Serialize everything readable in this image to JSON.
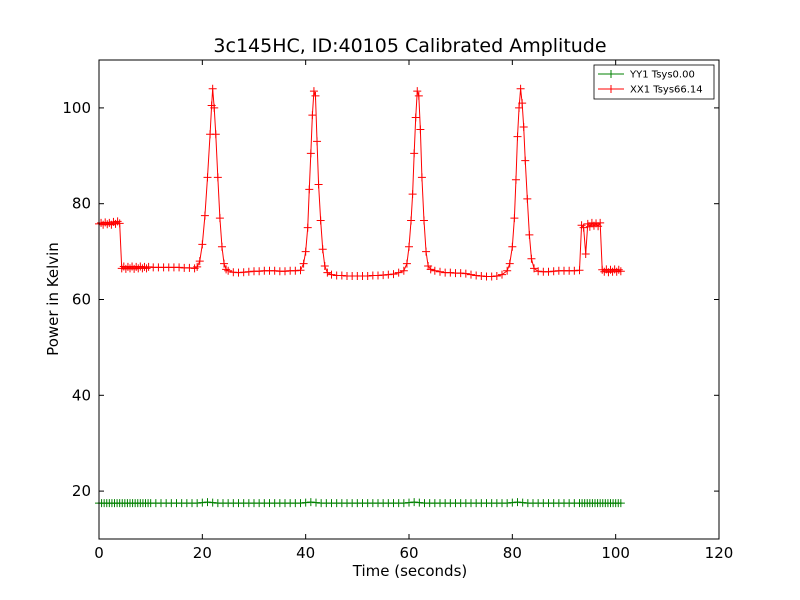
{
  "chart_data": {
    "type": "line",
    "title": "3c145HC, ID:40105 Calibrated Amplitude",
    "xlabel": "Time (seconds)",
    "ylabel": "Power in Kelvin",
    "xlim": [
      0,
      120
    ],
    "ylim": [
      10,
      110
    ],
    "x_ticks": [
      0,
      20,
      40,
      60,
      80,
      100,
      120
    ],
    "y_ticks": [
      20,
      40,
      60,
      80,
      100
    ],
    "grid": false,
    "legend_position": "top-right",
    "marker": "+",
    "series": [
      {
        "name": "YY1 Tsys0.00",
        "color": "#008000",
        "points": [
          [
            0,
            17.5
          ],
          [
            0.5,
            17.5
          ],
          [
            1,
            17.5
          ],
          [
            1.5,
            17.5
          ],
          [
            2,
            17.5
          ],
          [
            2.5,
            17.5
          ],
          [
            3,
            17.5
          ],
          [
            3.5,
            17.5
          ],
          [
            4,
            17.5
          ],
          [
            4.5,
            17.5
          ],
          [
            5,
            17.5
          ],
          [
            5.5,
            17.5
          ],
          [
            6,
            17.5
          ],
          [
            6.5,
            17.5
          ],
          [
            7,
            17.5
          ],
          [
            7.5,
            17.5
          ],
          [
            8,
            17.5
          ],
          [
            8.5,
            17.5
          ],
          [
            9,
            17.5
          ],
          [
            9.5,
            17.5
          ],
          [
            10,
            17.5
          ],
          [
            11,
            17.5
          ],
          [
            12,
            17.5
          ],
          [
            13,
            17.5
          ],
          [
            14,
            17.5
          ],
          [
            15,
            17.5
          ],
          [
            16,
            17.5
          ],
          [
            17,
            17.5
          ],
          [
            18,
            17.5
          ],
          [
            19,
            17.5
          ],
          [
            20,
            17.6
          ],
          [
            21,
            17.7
          ],
          [
            22,
            17.6
          ],
          [
            23,
            17.5
          ],
          [
            24,
            17.5
          ],
          [
            25,
            17.5
          ],
          [
            26,
            17.5
          ],
          [
            27,
            17.5
          ],
          [
            28,
            17.5
          ],
          [
            29,
            17.5
          ],
          [
            30,
            17.5
          ],
          [
            31,
            17.5
          ],
          [
            32,
            17.5
          ],
          [
            33,
            17.5
          ],
          [
            34,
            17.5
          ],
          [
            35,
            17.5
          ],
          [
            36,
            17.5
          ],
          [
            37,
            17.5
          ],
          [
            38,
            17.5
          ],
          [
            39,
            17.5
          ],
          [
            40,
            17.6
          ],
          [
            41,
            17.7
          ],
          [
            42,
            17.6
          ],
          [
            43,
            17.5
          ],
          [
            44,
            17.5
          ],
          [
            45,
            17.5
          ],
          [
            46,
            17.5
          ],
          [
            47,
            17.5
          ],
          [
            48,
            17.5
          ],
          [
            49,
            17.5
          ],
          [
            50,
            17.5
          ],
          [
            51,
            17.5
          ],
          [
            52,
            17.5
          ],
          [
            53,
            17.5
          ],
          [
            54,
            17.5
          ],
          [
            55,
            17.5
          ],
          [
            56,
            17.5
          ],
          [
            57,
            17.5
          ],
          [
            58,
            17.5
          ],
          [
            59,
            17.5
          ],
          [
            60,
            17.6
          ],
          [
            61,
            17.7
          ],
          [
            62,
            17.6
          ],
          [
            63,
            17.5
          ],
          [
            64,
            17.5
          ],
          [
            65,
            17.5
          ],
          [
            66,
            17.5
          ],
          [
            67,
            17.5
          ],
          [
            68,
            17.5
          ],
          [
            69,
            17.5
          ],
          [
            70,
            17.5
          ],
          [
            71,
            17.5
          ],
          [
            72,
            17.5
          ],
          [
            73,
            17.5
          ],
          [
            74,
            17.5
          ],
          [
            75,
            17.5
          ],
          [
            76,
            17.5
          ],
          [
            77,
            17.5
          ],
          [
            78,
            17.5
          ],
          [
            79,
            17.5
          ],
          [
            80,
            17.6
          ],
          [
            81,
            17.7
          ],
          [
            82,
            17.6
          ],
          [
            83,
            17.5
          ],
          [
            84,
            17.5
          ],
          [
            85,
            17.5
          ],
          [
            86,
            17.5
          ],
          [
            87,
            17.5
          ],
          [
            88,
            17.5
          ],
          [
            89,
            17.5
          ],
          [
            90,
            17.5
          ],
          [
            91,
            17.5
          ],
          [
            92,
            17.5
          ],
          [
            93,
            17.5
          ],
          [
            93.5,
            17.5
          ],
          [
            94,
            17.5
          ],
          [
            94.5,
            17.5
          ],
          [
            95,
            17.5
          ],
          [
            95.5,
            17.5
          ],
          [
            96,
            17.5
          ],
          [
            96.5,
            17.5
          ],
          [
            97,
            17.5
          ],
          [
            97.5,
            17.5
          ],
          [
            98,
            17.5
          ],
          [
            98.5,
            17.5
          ],
          [
            99,
            17.5
          ],
          [
            99.5,
            17.5
          ],
          [
            100,
            17.5
          ],
          [
            100.5,
            17.5
          ],
          [
            101,
            17.5
          ]
        ]
      },
      {
        "name": "XX1 Tsys66.14",
        "color": "#ff0000",
        "points": [
          [
            0,
            75.8
          ],
          [
            0.4,
            76.0
          ],
          [
            0.8,
            75.6
          ],
          [
            1.2,
            76.1
          ],
          [
            1.6,
            75.7
          ],
          [
            2.0,
            76.0
          ],
          [
            2.4,
            75.6
          ],
          [
            2.8,
            76.2
          ],
          [
            3.2,
            75.8
          ],
          [
            3.6,
            76.3
          ],
          [
            4.0,
            75.9
          ],
          [
            4.4,
            66.5
          ],
          [
            4.8,
            66.9
          ],
          [
            5.2,
            66.4
          ],
          [
            5.6,
            66.8
          ],
          [
            6.0,
            66.5
          ],
          [
            6.4,
            66.9
          ],
          [
            6.8,
            66.4
          ],
          [
            7.2,
            66.8
          ],
          [
            7.6,
            66.5
          ],
          [
            8.0,
            66.9
          ],
          [
            8.4,
            66.5
          ],
          [
            8.8,
            66.8
          ],
          [
            9.2,
            66.5
          ],
          [
            9.6,
            66.8
          ],
          [
            10.5,
            66.7
          ],
          [
            11.5,
            66.7
          ],
          [
            12.5,
            66.7
          ],
          [
            13.5,
            66.7
          ],
          [
            14.5,
            66.7
          ],
          [
            15.5,
            66.7
          ],
          [
            16.5,
            66.6
          ],
          [
            17.5,
            66.6
          ],
          [
            18.5,
            66.5
          ],
          [
            19.0,
            66.8
          ],
          [
            19.5,
            68.0
          ],
          [
            20.0,
            71.5
          ],
          [
            20.5,
            77.5
          ],
          [
            21.0,
            85.5
          ],
          [
            21.5,
            94.5
          ],
          [
            21.8,
            100.5
          ],
          [
            22.0,
            104.0
          ],
          [
            22.3,
            100.0
          ],
          [
            22.6,
            94.5
          ],
          [
            23.0,
            85.5
          ],
          [
            23.4,
            77.0
          ],
          [
            23.8,
            71.0
          ],
          [
            24.2,
            67.5
          ],
          [
            24.6,
            66.3
          ],
          [
            25.0,
            66.0
          ],
          [
            26.0,
            65.7
          ],
          [
            27.0,
            65.6
          ],
          [
            28.0,
            65.7
          ],
          [
            29.0,
            65.8
          ],
          [
            30.0,
            65.9
          ],
          [
            31.0,
            65.9
          ],
          [
            32.0,
            66.0
          ],
          [
            33.0,
            66.0
          ],
          [
            34.0,
            66.0
          ],
          [
            35.0,
            65.9
          ],
          [
            36.0,
            65.9
          ],
          [
            37.0,
            66.0
          ],
          [
            38.0,
            66.0
          ],
          [
            39.0,
            66.1
          ],
          [
            39.6,
            67.5
          ],
          [
            40.0,
            70.0
          ],
          [
            40.4,
            75.0
          ],
          [
            40.7,
            83.0
          ],
          [
            41.0,
            90.5
          ],
          [
            41.3,
            98.5
          ],
          [
            41.6,
            103.5
          ],
          [
            41.9,
            102.5
          ],
          [
            42.2,
            93.0
          ],
          [
            42.5,
            84.0
          ],
          [
            42.9,
            76.5
          ],
          [
            43.3,
            70.5
          ],
          [
            43.7,
            67.0
          ],
          [
            44.2,
            65.6
          ],
          [
            45.0,
            65.2
          ],
          [
            46.0,
            65.0
          ],
          [
            47.0,
            65.0
          ],
          [
            48.0,
            64.9
          ],
          [
            49.0,
            64.9
          ],
          [
            50.0,
            64.9
          ],
          [
            51.0,
            64.9
          ],
          [
            52.0,
            64.9
          ],
          [
            53.0,
            65.0
          ],
          [
            54.0,
            65.0
          ],
          [
            55.0,
            65.1
          ],
          [
            56.0,
            65.2
          ],
          [
            57.0,
            65.3
          ],
          [
            58.0,
            65.6
          ],
          [
            59.0,
            66.0
          ],
          [
            59.6,
            67.5
          ],
          [
            60.0,
            71.0
          ],
          [
            60.4,
            76.5
          ],
          [
            60.7,
            82.0
          ],
          [
            61.0,
            90.5
          ],
          [
            61.3,
            98.0
          ],
          [
            61.6,
            103.5
          ],
          [
            61.9,
            102.5
          ],
          [
            62.2,
            95.5
          ],
          [
            62.5,
            85.5
          ],
          [
            62.9,
            76.5
          ],
          [
            63.3,
            70.0
          ],
          [
            63.7,
            67.0
          ],
          [
            64.2,
            66.3
          ],
          [
            65.0,
            66.0
          ],
          [
            66.0,
            65.8
          ],
          [
            67.0,
            65.6
          ],
          [
            68.0,
            65.6
          ],
          [
            69.0,
            65.5
          ],
          [
            70.0,
            65.5
          ],
          [
            71.0,
            65.4
          ],
          [
            72.0,
            65.2
          ],
          [
            73.0,
            65.0
          ],
          [
            74.0,
            64.9
          ],
          [
            75.0,
            64.8
          ],
          [
            76.0,
            64.8
          ],
          [
            77.0,
            64.9
          ],
          [
            78.0,
            65.2
          ],
          [
            79.0,
            66.0
          ],
          [
            79.5,
            67.5
          ],
          [
            80.0,
            71.0
          ],
          [
            80.4,
            77.0
          ],
          [
            80.7,
            85.0
          ],
          [
            81.0,
            94.0
          ],
          [
            81.3,
            100.0
          ],
          [
            81.6,
            104.0
          ],
          [
            81.9,
            101.0
          ],
          [
            82.2,
            96.0
          ],
          [
            82.5,
            89.0
          ],
          [
            82.9,
            81.0
          ],
          [
            83.3,
            73.5
          ],
          [
            83.7,
            68.5
          ],
          [
            84.2,
            66.5
          ],
          [
            85.0,
            65.9
          ],
          [
            86.0,
            65.8
          ],
          [
            87.0,
            65.8
          ],
          [
            88.0,
            65.9
          ],
          [
            89.0,
            66.0
          ],
          [
            90.0,
            66.0
          ],
          [
            91.0,
            66.0
          ],
          [
            92.0,
            66.0
          ],
          [
            93.0,
            66.1
          ],
          [
            93.4,
            75.5
          ],
          [
            93.8,
            75.0
          ],
          [
            94.2,
            69.5
          ],
          [
            94.6,
            75.8
          ],
          [
            95.0,
            75.2
          ],
          [
            95.4,
            76.0
          ],
          [
            95.8,
            75.4
          ],
          [
            96.2,
            75.9
          ],
          [
            96.6,
            75.3
          ],
          [
            97.0,
            76.0
          ],
          [
            97.4,
            66.2
          ],
          [
            97.8,
            65.8
          ],
          [
            98.2,
            66.3
          ],
          [
            98.6,
            65.7
          ],
          [
            99.0,
            66.2
          ],
          [
            99.4,
            65.8
          ],
          [
            99.8,
            66.3
          ],
          [
            100.2,
            65.8
          ],
          [
            100.6,
            66.2
          ],
          [
            101.0,
            65.9
          ]
        ]
      }
    ]
  }
}
